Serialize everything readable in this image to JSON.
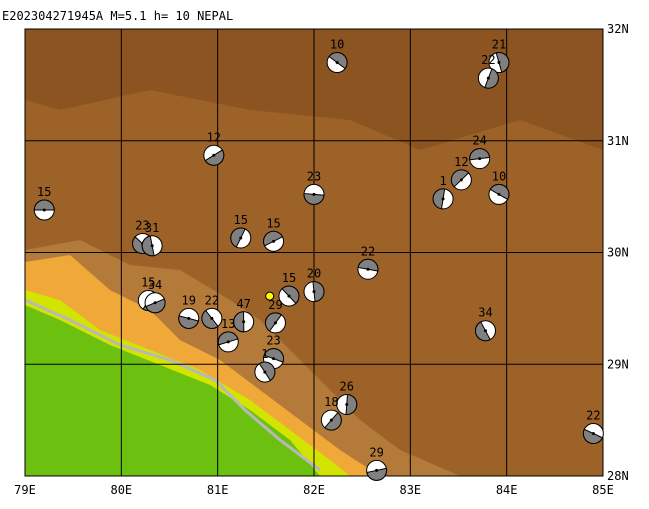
{
  "title": "E202304271945A M=5.1 h= 10 NEPAL",
  "lon_range": [
    79,
    85
  ],
  "lat_range": [
    28,
    32
  ],
  "lon_ticks": [
    {
      "value": 79,
      "label": "79E"
    },
    {
      "value": 80,
      "label": "80E"
    },
    {
      "value": 81,
      "label": "81E"
    },
    {
      "value": 82,
      "label": "82E"
    },
    {
      "value": 83,
      "label": "83E"
    },
    {
      "value": 84,
      "label": "84E"
    },
    {
      "value": 85,
      "label": "85E"
    }
  ],
  "lat_ticks": [
    {
      "value": 28,
      "label": "28N"
    },
    {
      "value": 29,
      "label": "29N"
    },
    {
      "value": 30,
      "label": "30N"
    },
    {
      "value": 31,
      "label": "31N"
    },
    {
      "value": 32,
      "label": "32N"
    }
  ],
  "epicenter": {
    "lon": 81.54,
    "lat": 29.61
  },
  "events": [
    {
      "label": "15",
      "lon": 79.2,
      "lat": 30.38
    },
    {
      "label": "10",
      "lon": 82.24,
      "lat": 31.7
    },
    {
      "label": "21",
      "lon": 83.92,
      "lat": 31.7
    },
    {
      "label": "22",
      "lon": 83.81,
      "lat": 31.56
    },
    {
      "label": "12",
      "lon": 80.96,
      "lat": 30.87
    },
    {
      "label": "23",
      "lon": 82.0,
      "lat": 30.52
    },
    {
      "label": "23",
      "lon": 80.22,
      "lat": 30.08
    },
    {
      "label": "31",
      "lon": 80.32,
      "lat": 30.06
    },
    {
      "label": "15",
      "lon": 81.24,
      "lat": 30.13
    },
    {
      "label": "15",
      "lon": 81.58,
      "lat": 30.1
    },
    {
      "label": "22",
      "lon": 82.56,
      "lat": 29.85
    },
    {
      "label": "15",
      "lon": 81.74,
      "lat": 29.61
    },
    {
      "label": "20",
      "lon": 82.0,
      "lat": 29.65
    },
    {
      "label": "15",
      "lon": 80.28,
      "lat": 29.57
    },
    {
      "label": "34",
      "lon": 80.35,
      "lat": 29.55
    },
    {
      "label": "19",
      "lon": 80.7,
      "lat": 29.41
    },
    {
      "label": "22",
      "lon": 80.94,
      "lat": 29.41
    },
    {
      "label": "47",
      "lon": 81.27,
      "lat": 29.38
    },
    {
      "label": "29",
      "lon": 81.6,
      "lat": 29.37
    },
    {
      "label": "13",
      "lon": 81.11,
      "lat": 29.2
    },
    {
      "label": "23",
      "lon": 81.58,
      "lat": 29.05
    },
    {
      "label": "1",
      "lon": 81.49,
      "lat": 28.93
    },
    {
      "label": "26",
      "lon": 82.34,
      "lat": 28.64
    },
    {
      "label": "18",
      "lon": 82.18,
      "lat": 28.5
    },
    {
      "label": "29",
      "lon": 82.65,
      "lat": 28.05
    },
    {
      "label": "22",
      "lon": 84.9,
      "lat": 28.38
    },
    {
      "label": "34",
      "lon": 83.78,
      "lat": 29.3
    },
    {
      "label": "1",
      "lon": 83.34,
      "lat": 30.48
    },
    {
      "label": "12",
      "lon": 83.53,
      "lat": 30.65
    },
    {
      "label": "24",
      "lon": 83.72,
      "lat": 30.84
    },
    {
      "label": "10",
      "lon": 83.92,
      "lat": 30.52
    }
  ]
}
